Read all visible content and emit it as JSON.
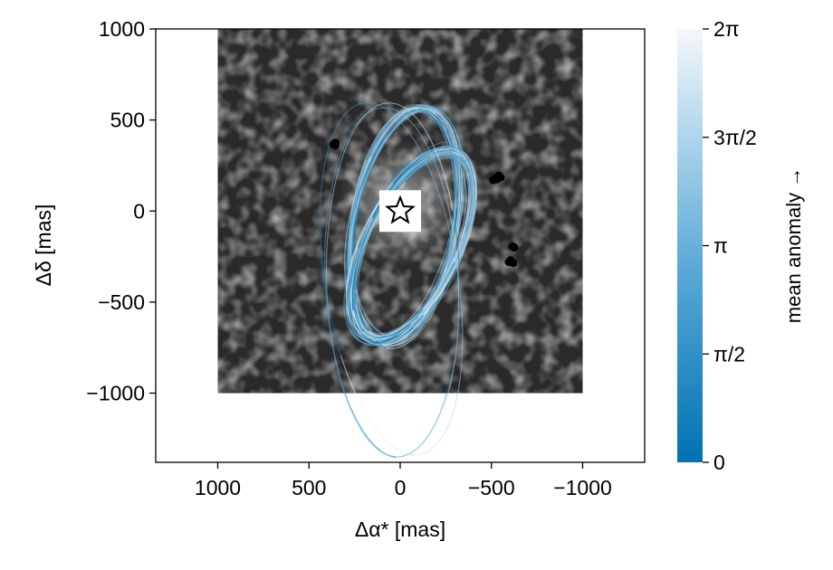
{
  "chart_data": {
    "type": "scatter",
    "xlabel": "Δα* [mas]",
    "ylabel": "Δδ [mas]",
    "x_axis_reversed": true,
    "xlim": [
      1340,
      -1340
    ],
    "ylim": [
      -1380,
      1000
    ],
    "xticks": [
      {
        "value": 1000,
        "label": "1000"
      },
      {
        "value": 500,
        "label": "500"
      },
      {
        "value": 0,
        "label": "0"
      },
      {
        "value": -500,
        "label": "−500"
      },
      {
        "value": -1000,
        "label": "−1000"
      }
    ],
    "yticks": [
      {
        "value": 1000,
        "label": "1000"
      },
      {
        "value": 500,
        "label": "500"
      },
      {
        "value": 0,
        "label": "0"
      },
      {
        "value": -500,
        "label": "−500"
      },
      {
        "value": -1000,
        "label": "−1000"
      }
    ],
    "grid": false,
    "image_extent": {
      "x": [
        1000,
        -1000
      ],
      "y": [
        -1000,
        1000
      ]
    },
    "star_marker": {
      "x": 0,
      "y": 0
    },
    "detections": [
      {
        "x": 355,
        "y": 375
      },
      {
        "x": 355,
        "y": 360
      },
      {
        "x": 365,
        "y": 368
      },
      {
        "x": -520,
        "y": 180
      },
      {
        "x": -540,
        "y": 195
      },
      {
        "x": -550,
        "y": 185
      },
      {
        "x": -510,
        "y": 170
      },
      {
        "x": -530,
        "y": 175
      },
      {
        "x": -615,
        "y": -195
      },
      {
        "x": -625,
        "y": -200
      },
      {
        "x": -605,
        "y": -270
      },
      {
        "x": -620,
        "y": -285
      },
      {
        "x": -595,
        "y": -280
      }
    ],
    "orbits": {
      "color_low": "#0072b2",
      "color_high": "#f5f8fa",
      "families": [
        {
          "cx": -22,
          "cy": -78,
          "a": 282,
          "b": 653,
          "angle": 10,
          "count": 28,
          "spread": 0.08
        },
        {
          "cx": -62,
          "cy": -190,
          "a": 254,
          "b": 568,
          "angle": 25,
          "count": 34,
          "spread": 0.1
        },
        {
          "cx": 40,
          "cy": -380,
          "a": 360,
          "b": 980,
          "angle": -5,
          "count": 3,
          "spread": 0.04
        }
      ]
    },
    "colorbar": {
      "label": "mean anomaly →",
      "ticks": [
        {
          "value": 0,
          "label": "0"
        },
        {
          "value": 1.5708,
          "label": "π/2"
        },
        {
          "value": 3.1416,
          "label": "π"
        },
        {
          "value": 4.7124,
          "label": "3π/2"
        },
        {
          "value": 6.2832,
          "label": "2π"
        }
      ],
      "range": [
        0,
        6.2832
      ]
    }
  }
}
